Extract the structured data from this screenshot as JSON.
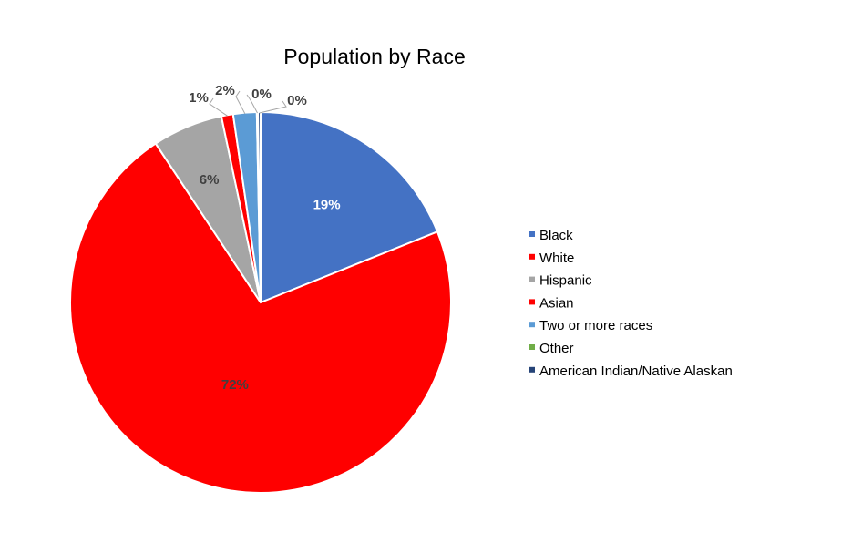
{
  "chart_data": {
    "type": "pie",
    "title": "Population by Race",
    "categories": [
      "Black",
      "White",
      "Hispanic",
      "Asian",
      "Two or more races",
      "Other",
      "American Indian/Native Alaskan"
    ],
    "values": [
      19,
      72,
      6,
      1,
      2,
      0,
      0
    ],
    "data_labels": [
      "19%",
      "72%",
      "6%",
      "1%",
      "2%",
      "0%",
      "0%"
    ],
    "colors": [
      "#4472c4",
      "#ff0000",
      "#a5a5a5",
      "#ff0000",
      "#5b9bd5",
      "#70ad47",
      "#264478"
    ],
    "legend_position": "right"
  }
}
